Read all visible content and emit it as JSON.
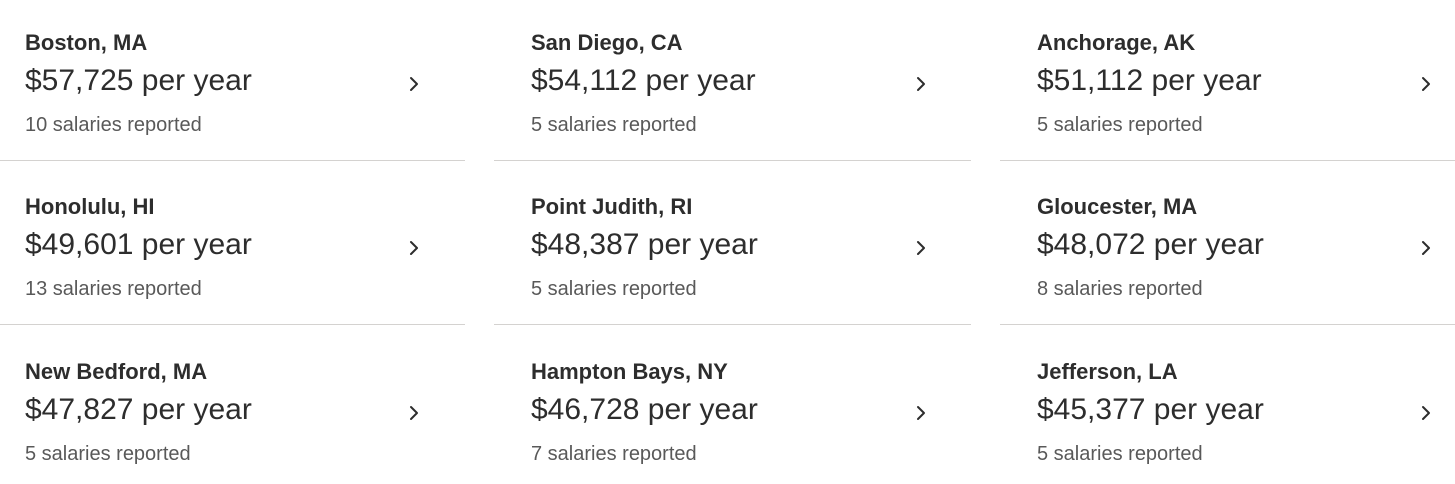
{
  "cards": [
    {
      "city": "Boston, MA",
      "salary": "$57,725 per year",
      "reports": "10 salaries reported"
    },
    {
      "city": "San Diego, CA",
      "salary": "$54,112 per year",
      "reports": "5 salaries reported"
    },
    {
      "city": "Anchorage, AK",
      "salary": "$51,112 per year",
      "reports": "5 salaries reported"
    },
    {
      "city": "Honolulu, HI",
      "salary": "$49,601 per year",
      "reports": "13 salaries reported"
    },
    {
      "city": "Point Judith, RI",
      "salary": "$48,387 per year",
      "reports": "5 salaries reported"
    },
    {
      "city": "Gloucester, MA",
      "salary": "$48,072 per year",
      "reports": "8 salaries reported"
    },
    {
      "city": "New Bedford, MA",
      "salary": "$47,827 per year",
      "reports": "5 salaries reported"
    },
    {
      "city": "Hampton Bays, NY",
      "salary": "$46,728 per year",
      "reports": "7 salaries reported"
    },
    {
      "city": "Jefferson, LA",
      "salary": "$45,377 per year",
      "reports": "5 salaries reported"
    }
  ]
}
